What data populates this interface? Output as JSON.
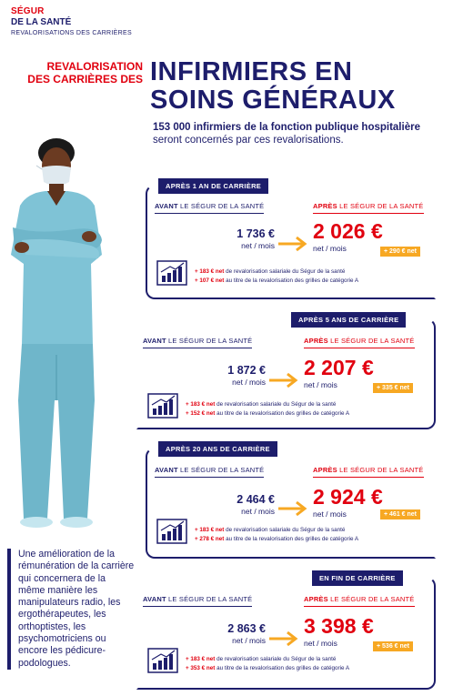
{
  "header": {
    "brand_line1": "SÉGUR",
    "brand_line2": "DE LA SANTÉ",
    "brand_line3": "REVALORISATIONS DES CARRIÈRES"
  },
  "kicker": {
    "line1": "REVALORISATION",
    "line2": "DES CARRIÈRES DES"
  },
  "title": {
    "line1": "INFIRMIERS EN",
    "line2": "SOINS GÉNÉRAUX"
  },
  "lead": {
    "bold": "153 000 infirmiers de la fonction publique hospitalière",
    "rest": "seront concernés par ces revalorisations."
  },
  "side_text": "Une amélioration de la rémunération de la carrière qui concernera de la même manière les manipulateurs radio, les ergothérapeutes, les orthoptistes, les psychomotriciens ou encore les pédicure-podologues.",
  "labels": {
    "avant_bold": "AVANT",
    "avant_rest": " LE SÉGUR DE LA SANTÉ",
    "apres_bold": "APRÈS",
    "apres_rest": " LE SÉGUR DE LA SANTÉ",
    "unit": "net / mois",
    "note1_suffix": " de revalorisation salariale du Ségur de la santé",
    "note2_suffix": " au titre de la revalorisation des grilles de catégorie A"
  },
  "cards": [
    {
      "tag": "APRÈS 1 AN DE CARRIÈRE",
      "avant": "1 736 €",
      "apres": "2 026 €",
      "plus": "+ 290 € net",
      "note1_prefix": "+ 183 € net",
      "note2_prefix": "+ 107 € net"
    },
    {
      "tag": "APRÈS 5 ANS DE CARRIÈRE",
      "avant": "1 872 €",
      "apres": "2 207 €",
      "plus": "+ 335 € net",
      "note1_prefix": "+ 183 € net",
      "note2_prefix": "+ 152 € net"
    },
    {
      "tag": "APRÈS 20 ANS DE CARRIÈRE",
      "avant": "2 464 €",
      "apres": "2 924 €",
      "plus": "+ 461 € net",
      "note1_prefix": "+ 183 € net",
      "note2_prefix": "+ 278 € net"
    },
    {
      "tag": "EN FIN DE CARRIÈRE",
      "avant": "2 863 €",
      "apres": "3 398 €",
      "plus": "+ 536 € net",
      "note1_prefix": "+ 183 € net",
      "note2_prefix": "+ 353 € net"
    }
  ],
  "colors": {
    "navy": "#1d1d6b",
    "red": "#e1000f",
    "orange": "#f7a823",
    "scrubs": "#7fc3d6"
  }
}
